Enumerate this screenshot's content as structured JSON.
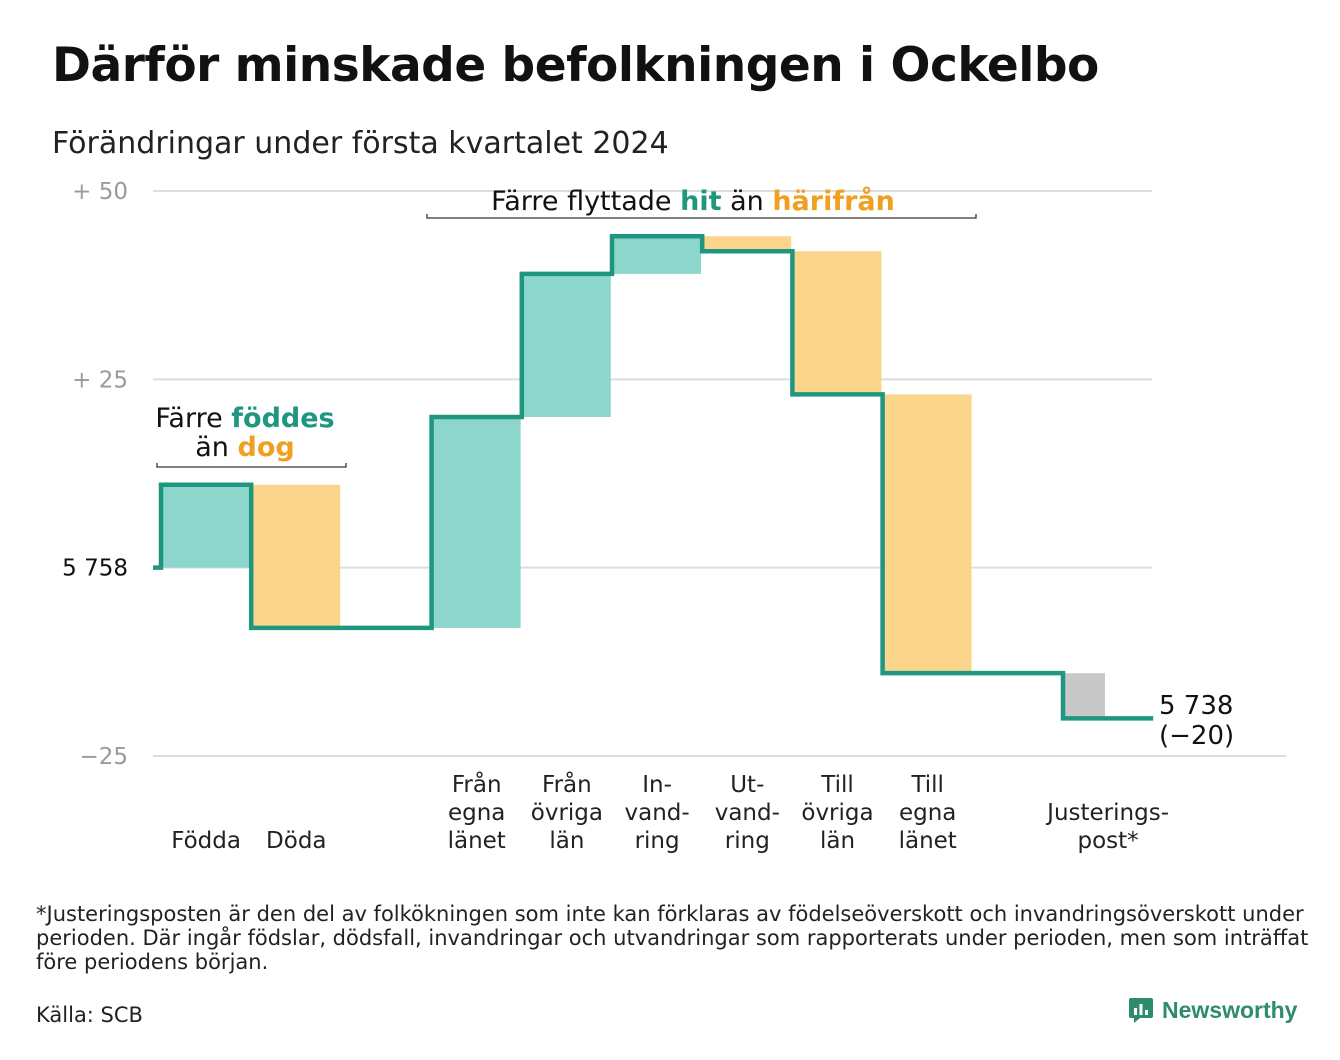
{
  "title": "Därför minskade befolkningen i Ockelbo",
  "subtitle": "Förändringar under första kvartalet 2024",
  "chart_data": {
    "type": "bar",
    "variant": "waterfall",
    "baseline_label": "5 758",
    "y_ticks": [
      {
        "value": 50,
        "label": "+  50",
        "color": "#9a9a9a"
      },
      {
        "value": 25,
        "label": "+  25",
        "color": "#9a9a9a"
      },
      {
        "value": 0,
        "label": "5  758",
        "color": "#111111"
      },
      {
        "value": -25,
        "label": "−25",
        "color": "#9a9a9a"
      }
    ],
    "ylim": [
      -25,
      50
    ],
    "grid": true,
    "steps": [
      {
        "label": [
          "",
          "",
          "Födda"
        ],
        "delta": 11,
        "kind": "in"
      },
      {
        "label": [
          "",
          "",
          "Döda"
        ],
        "delta": -19,
        "kind": "out"
      },
      {
        "label": [
          "",
          "",
          ""
        ],
        "delta": 0,
        "kind": "none"
      },
      {
        "label": [
          "Från",
          "egna",
          "länet"
        ],
        "delta": 28,
        "kind": "in"
      },
      {
        "label": [
          "Från",
          "övriga",
          "län"
        ],
        "delta": 19,
        "kind": "in"
      },
      {
        "label": [
          "In-",
          "vand-",
          "ring"
        ],
        "delta": 5,
        "kind": "in"
      },
      {
        "label": [
          "Ut-",
          "vand-",
          "ring"
        ],
        "delta": -2,
        "kind": "out"
      },
      {
        "label": [
          "Till",
          "övriga",
          "län"
        ],
        "delta": -19,
        "kind": "out"
      },
      {
        "label": [
          "Till",
          "egna",
          "länet"
        ],
        "delta": -37,
        "kind": "out"
      },
      {
        "label": [
          "",
          "",
          ""
        ],
        "delta": 0,
        "kind": "none"
      },
      {
        "label": [
          "",
          "Justerings-",
          "post*"
        ],
        "delta": -6,
        "kind": "adjust"
      }
    ],
    "end_label": [
      "5 738",
      "(−20)"
    ],
    "annotations": [
      {
        "id": "births",
        "parts": [
          {
            "line": 1,
            "text": "Färre ",
            "style": "plain"
          },
          {
            "line": 1,
            "text": "föddes",
            "style": "in"
          },
          {
            "line": 2,
            "text": "än ",
            "style": "plain"
          },
          {
            "line": 2,
            "text": "dog",
            "style": "out"
          }
        ]
      },
      {
        "id": "migration",
        "parts": [
          {
            "line": 1,
            "text": "Färre flyttade ",
            "style": "plain"
          },
          {
            "line": 1,
            "text": "hit",
            "style": "in"
          },
          {
            "line": 1,
            "text": " än ",
            "style": "plain"
          },
          {
            "line": 1,
            "text": "härifrån",
            "style": "out"
          }
        ]
      }
    ],
    "colors": {
      "in_fill": "#8dd6cc",
      "out_fill": "#fbd58c",
      "adjust_fill": "#c8c8c8",
      "line": "#1f9680",
      "in_text": "#1f9680",
      "out_text": "#f0a020",
      "grid": "#dddddd"
    }
  },
  "footnote": "*Justeringsposten är den del av folkökningen som inte kan förklaras av födelseöverskott och invandringsöverskott under perioden. Där ingår födslar, dödsfall, invandringar och utvandringar som rapporterats under perioden, men som inträffat före periodens början.",
  "source": "Källa: SCB",
  "brand": {
    "name": "Newsworthy",
    "icon": "newsworthy-logo-icon",
    "color": "#2e8b6e"
  }
}
